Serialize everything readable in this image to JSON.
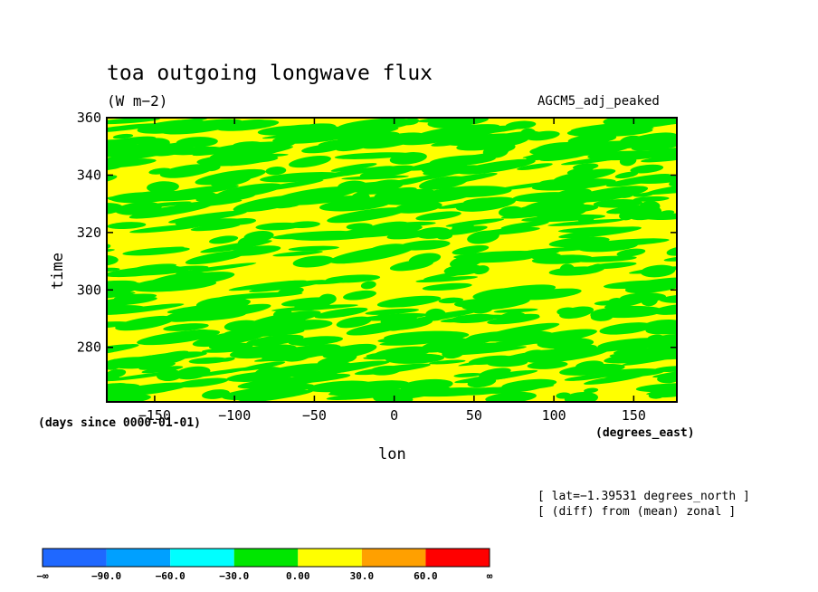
{
  "chart_data": {
    "type": "heatmap",
    "title": "toa outgoing longwave flux",
    "units": "(W m−2)",
    "run_name": "AGCM5_adj_peaked",
    "xlabel": "lon",
    "ylabel": "time",
    "x_units": "(degrees_east)",
    "y_units": "(days since 0000-01-01)",
    "xlim": [
      -180,
      177
    ],
    "ylim": [
      261,
      360
    ],
    "x_ticks": [
      -150,
      -100,
      -50,
      0,
      50,
      100,
      150
    ],
    "x_tick_labels": [
      "−150",
      "−100",
      "−50",
      "0",
      "50",
      "100",
      "150"
    ],
    "y_ticks": [
      280,
      300,
      320,
      340,
      360
    ],
    "y_tick_labels": [
      "280",
      "300",
      "320",
      "340",
      "360"
    ],
    "notes": [
      "[ lat=−1.39531 degrees_north ]",
      "[ (diff) from (mean) zonal ]"
    ],
    "colorbar": {
      "levels": [
        "−∞",
        "−90.0",
        "−60.0",
        "−30.0",
        "0.00",
        "30.0",
        "60.0",
        "∞"
      ],
      "colors": [
        "#1f68ff",
        "#00a0ff",
        "#00ffff",
        "#00e600",
        "#ffff00",
        "#ffa000",
        "#ff0000"
      ]
    },
    "visible_ranges": [
      "-30.0 to 0.00 (green)",
      "0.00 to 30.0 (yellow)"
    ],
    "pattern": "eastward-propagating anomaly streaks alternating between green and yellow"
  }
}
